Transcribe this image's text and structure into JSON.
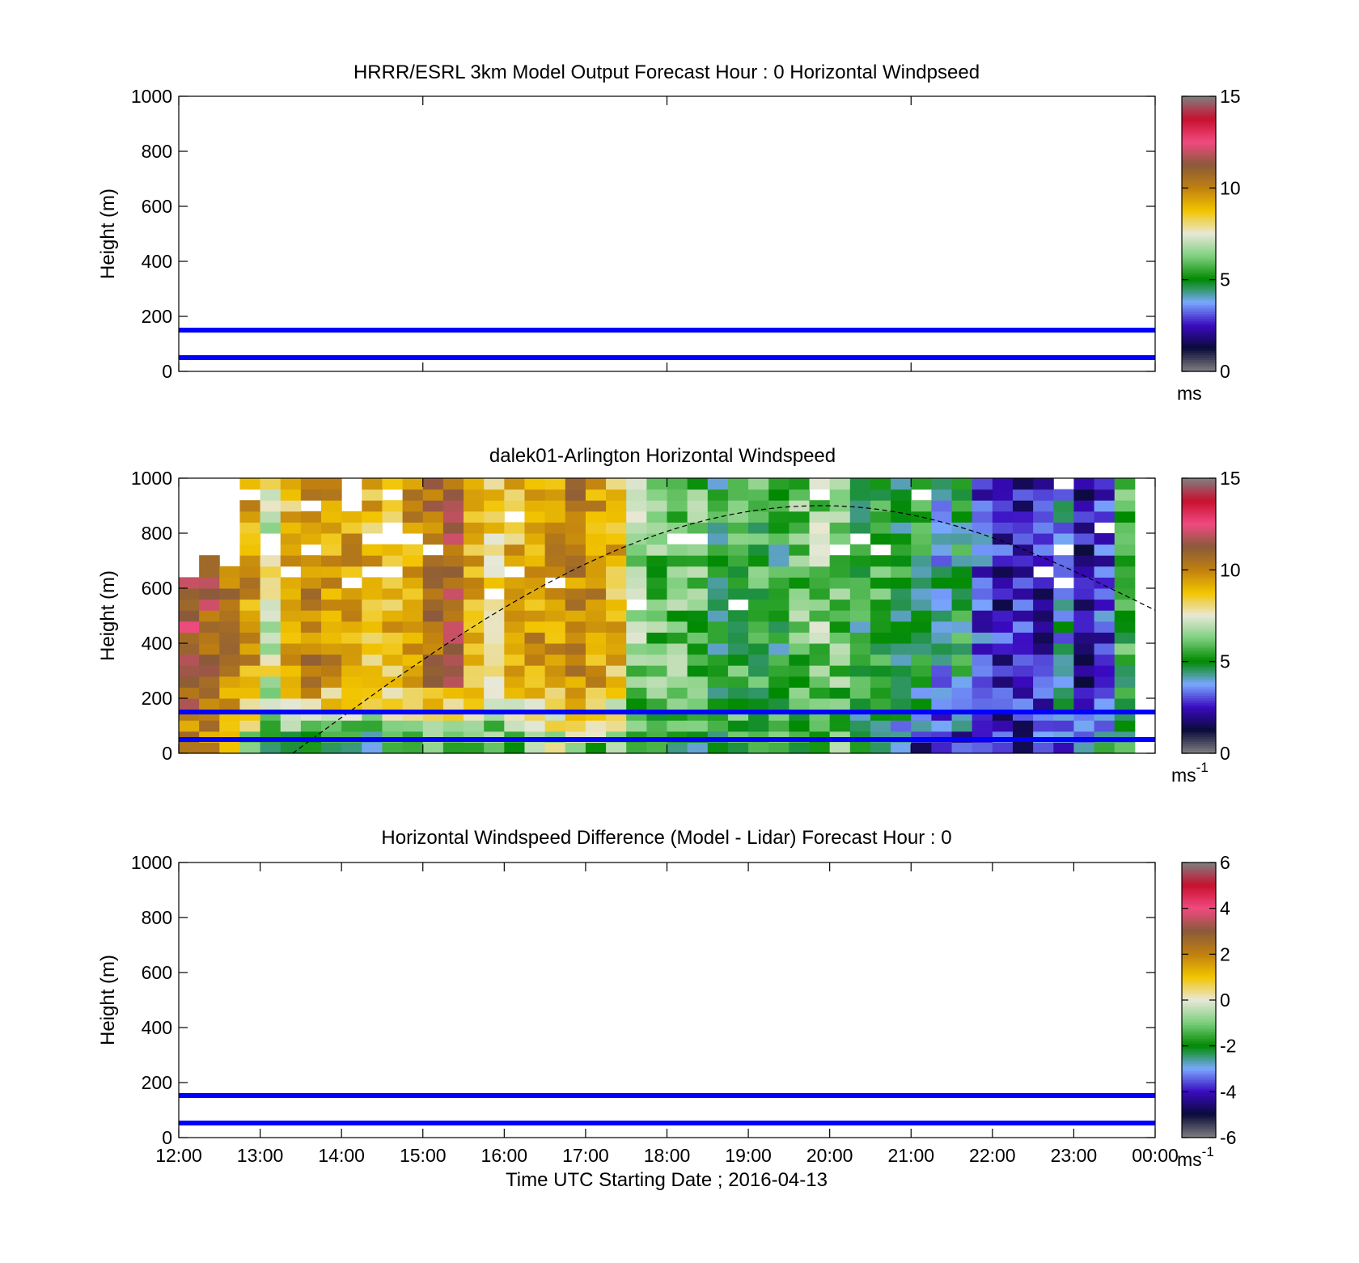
{
  "figure": {
    "xlabel": "Time UTC  Starting Date ; 2016-04-13",
    "x_ticks": [
      "12:00",
      "13:00",
      "14:00",
      "15:00",
      "16:00",
      "17:00",
      "18:00",
      "19:00",
      "20:00",
      "21:00",
      "22:00",
      "23:00",
      "00:00"
    ],
    "y_ticks": [
      "0",
      "200",
      "400",
      "600",
      "800",
      "1000"
    ]
  },
  "chart_data": [
    {
      "type": "heatmap",
      "title": "HRRR/ESRL 3km Model Output   Forecast Hour : 0 Horizontal Windpseed",
      "ylabel": "Height (m)",
      "xlim_hours_utc": [
        12,
        24
      ],
      "ylim": [
        0,
        1000
      ],
      "values": [],
      "reference_lines_m": [
        50,
        150
      ],
      "reference_line_color": "#0000ff",
      "colorbar": {
        "ticks": [
          "0",
          "5",
          "10",
          "15"
        ],
        "range": [
          0,
          15
        ],
        "unit_main": "ms",
        "unit_sup": ""
      }
    },
    {
      "type": "heatmap",
      "title": "dalek01-Arlington  Horizontal Windspeed",
      "ylabel": "Height (m)",
      "xlim_hours_utc": [
        12,
        24
      ],
      "ylim": [
        0,
        1000
      ],
      "x_bin_start_hours": 12.0,
      "x_bin_width_hours": 0.25,
      "y_bin_m": 40,
      "y_bins": 26,
      "max_height_profile_m": [
        680,
        710,
        660,
        990,
        1000,
        1000,
        1000,
        1000,
        860,
        1000,
        1000,
        1000,
        1000,
        1000,
        1000,
        1000,
        1000,
        1000,
        1000,
        1000,
        1000,
        1000,
        1000,
        1000,
        1000,
        1000,
        1000,
        1000,
        1000,
        1000,
        1000,
        1000,
        1000,
        1000,
        1000,
        1000,
        1000,
        1000,
        1000,
        1000,
        1000,
        1000,
        1000,
        1000,
        1000,
        1000,
        1000
      ],
      "column_mean_speed_ms": [
        11.5,
        11.0,
        10.0,
        9.5,
        7.5,
        9.0,
        10.0,
        9.5,
        9.5,
        9.0,
        9.0,
        9.5,
        10.5,
        11.0,
        9.0,
        8.5,
        9.0,
        9.5,
        9.5,
        10.0,
        9.5,
        9.0,
        6.5,
        6.0,
        6.0,
        6.0,
        5.0,
        5.5,
        5.5,
        5.0,
        6.0,
        6.5,
        6.0,
        5.0,
        5.5,
        5.0,
        5.0,
        4.0,
        5.0,
        3.0,
        2.5,
        2.5,
        2.5,
        4.0,
        2.0,
        3.0,
        5.5
      ],
      "near_surface_speed_ms": [
        9.5,
        9.5,
        9.0,
        6.0,
        5.5,
        5.0,
        5.0,
        5.5,
        5.0,
        4.5,
        5.0,
        5.0,
        5.5,
        5.0,
        5.5,
        5.5,
        6.0,
        6.5,
        7.0,
        7.0,
        6.0,
        6.0,
        5.0,
        5.0,
        5.0,
        5.0,
        5.0,
        5.5,
        6.0,
        6.0,
        5.5,
        5.5,
        6.0,
        5.0,
        5.0,
        3.5,
        2.5,
        2.5,
        2.5,
        2.5,
        2.5,
        2.5,
        3.5,
        3.5,
        4.0,
        4.5,
        5.0
      ],
      "reference_lines_m": [
        50,
        150
      ],
      "reference_line_color": "#0000ff",
      "dashed_curve": {
        "start_hour": 13.4,
        "peak_hour": 19.9,
        "peak_m": 900,
        "end_hour": 24,
        "end_m": 520
      },
      "colorbar": {
        "ticks": [
          "0",
          "5",
          "10",
          "15"
        ],
        "range": [
          0,
          15
        ],
        "unit_main": "ms",
        "unit_sup": "-1"
      }
    },
    {
      "type": "heatmap",
      "title": "Horizontal Windspeed Difference (Model - Lidar) Forecast Hour : 0",
      "ylabel": "Height (m)",
      "xlim_hours_utc": [
        12,
        24
      ],
      "ylim": [
        0,
        1000
      ],
      "values": [],
      "reference_lines_m": [
        50,
        150
      ],
      "reference_line_color": "#0000ff",
      "colorbar": {
        "ticks": [
          "-6",
          "-4",
          "-2",
          "0",
          "2",
          "4",
          "6"
        ],
        "range": [
          -6,
          6
        ],
        "unit_main": "ms",
        "unit_sup": "-1"
      }
    }
  ],
  "colormap_stops": [
    "#808080",
    "#0a0a3a",
    "#3a0ac0",
    "#7aa8ff",
    "#008a00",
    "#7ccf7c",
    "#e8e8d8",
    "#f2c400",
    "#c08010",
    "#8a5a3a",
    "#f04a80",
    "#c8102e",
    "#808080"
  ]
}
